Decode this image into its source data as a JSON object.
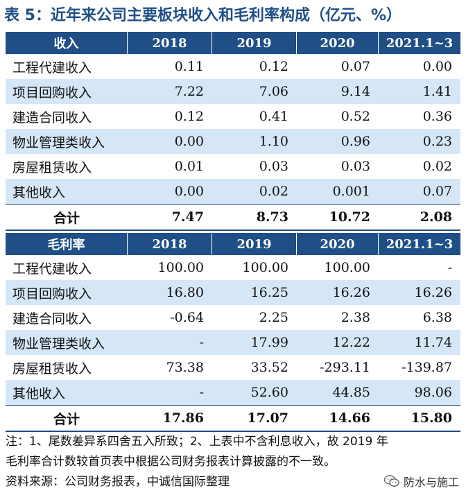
{
  "title": "表 5：近年来公司主要板块收入和毛利率构成（亿元、%）",
  "revenue": {
    "header": [
      "收入",
      "2018",
      "2019",
      "2020",
      "2021.1~3"
    ],
    "rows": [
      [
        "工程代建收入",
        "0.11",
        "0.12",
        "0.07",
        "0.00"
      ],
      [
        "项目回购收入",
        "7.22",
        "7.06",
        "9.14",
        "1.41"
      ],
      [
        "建造合同收入",
        "0.12",
        "0.41",
        "0.52",
        "0.36"
      ],
      [
        "物业管理类收入",
        "0.00",
        "1.10",
        "0.96",
        "0.23"
      ],
      [
        "房屋租赁收入",
        "0.01",
        "0.03",
        "0.03",
        "0.02"
      ],
      [
        "其他收入",
        "0.00",
        "0.02",
        "0.001",
        "0.07"
      ]
    ],
    "total": [
      "合计",
      "7.47",
      "8.73",
      "10.72",
      "2.08"
    ]
  },
  "margin": {
    "header": [
      "毛利率",
      "2018",
      "2019",
      "2020",
      "2021.1~3"
    ],
    "rows": [
      [
        "工程代建收入",
        "100.00",
        "100.00",
        "100.00",
        "-"
      ],
      [
        "项目回购收入",
        "16.80",
        "16.25",
        "16.26",
        "16.26"
      ],
      [
        "建造合同收入",
        "-0.64",
        "2.25",
        "2.38",
        "6.38"
      ],
      [
        "物业管理类收入",
        "-",
        "17.99",
        "12.22",
        "11.74"
      ],
      [
        "房屋租赁收入",
        "73.38",
        "33.52",
        "-293.11",
        "-139.87"
      ],
      [
        "其他收入",
        "-",
        "52.60",
        "44.85",
        "98.06"
      ]
    ],
    "total": [
      "合计",
      "17.86",
      "17.07",
      "14.66",
      "15.80"
    ]
  },
  "notes": {
    "line1": "注：1、尾数差异系四舍五入所致；2、上表中不含利息收入，故 2019 年",
    "line2": "毛利率合计数较首页表中根据公司财务报表计算披露的不一致。",
    "source": "资料来源：公司财务报表，中诚信国际整理"
  },
  "watermark": {
    "text": "防水与施工",
    "icon": "wechat-icon"
  }
}
